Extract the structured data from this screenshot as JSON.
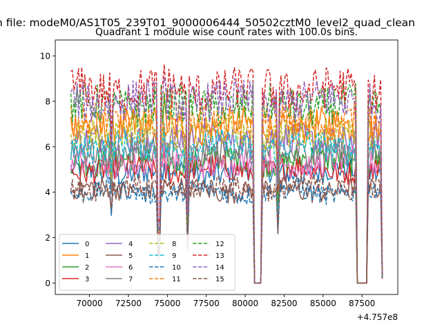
{
  "chart_data": {
    "type": "line",
    "suptitle": "n file: modeM0/AS1T05_239T01_9000006444_50502cztM0_level2_quad_clean",
    "title": "Quadrant 1 module wise count rates with 100.0s bins.",
    "xlabel": "",
    "ylabel": "",
    "offset_label": "+4.757e8",
    "xlim": [
      67800,
      89800
    ],
    "ylim": [
      -0.5,
      10.7
    ],
    "x_ticks": [
      70000,
      72500,
      75000,
      77500,
      80000,
      82500,
      85000,
      87500
    ],
    "x_tick_labels": [
      "70000",
      "72500",
      "75000",
      "77500",
      "80000",
      "82500",
      "85000",
      "87500"
    ],
    "y_ticks": [
      0,
      2,
      4,
      6,
      8,
      10
    ],
    "y_tick_labels": [
      "0",
      "2",
      "4",
      "6",
      "8",
      "10"
    ],
    "grid": false,
    "legend_position": "lower-left",
    "x_start": 68800,
    "bin_width": 100,
    "x_end": 88800,
    "zero_intervals": [
      [
        80600,
        81000
      ],
      [
        87200,
        87800
      ]
    ],
    "dips": [
      {
        "center": 71400,
        "factor": 0.75
      },
      {
        "center": 74450,
        "factor": 0.3
      },
      {
        "center": 76300,
        "factor": 0.35
      },
      {
        "center": 82100,
        "factor": 0.5
      }
    ],
    "spike": {
      "center": 74800,
      "factor": 1.1
    },
    "series": [
      {
        "name": "0",
        "color": "#1f77b4",
        "dash": "solid",
        "level": 4.9
      },
      {
        "name": "1",
        "color": "#ff7f0e",
        "dash": "solid",
        "level": 6.9
      },
      {
        "name": "2",
        "color": "#2ca02c",
        "dash": "solid",
        "level": 5.4
      },
      {
        "name": "3",
        "color": "#d62728",
        "dash": "solid",
        "level": 5.0
      },
      {
        "name": "4",
        "color": "#9467bd",
        "dash": "solid",
        "level": 6.3
      },
      {
        "name": "5",
        "color": "#8c564b",
        "dash": "solid",
        "level": 4.1
      },
      {
        "name": "6",
        "color": "#e377c2",
        "dash": "solid",
        "level": 5.3
      },
      {
        "name": "7",
        "color": "#7f7f7f",
        "dash": "solid",
        "level": 5.8
      },
      {
        "name": "8",
        "color": "#bcbd22",
        "dash": "dashed",
        "level": 6.6
      },
      {
        "name": "9",
        "color": "#17becf",
        "dash": "dashed",
        "level": 6.0
      },
      {
        "name": "10",
        "color": "#1f77b4",
        "dash": "dashed",
        "level": 4.0
      },
      {
        "name": "11",
        "color": "#ff7f0e",
        "dash": "dashed",
        "level": 7.1
      },
      {
        "name": "12",
        "color": "#2ca02c",
        "dash": "dashed",
        "level": 7.8
      },
      {
        "name": "13",
        "color": "#d62728",
        "dash": "dashed",
        "level": 8.5
      },
      {
        "name": "14",
        "color": "#9467bd",
        "dash": "dashed",
        "level": 8.0
      },
      {
        "name": "15",
        "color": "#8c564b",
        "dash": "dashed",
        "level": 4.2
      }
    ]
  }
}
